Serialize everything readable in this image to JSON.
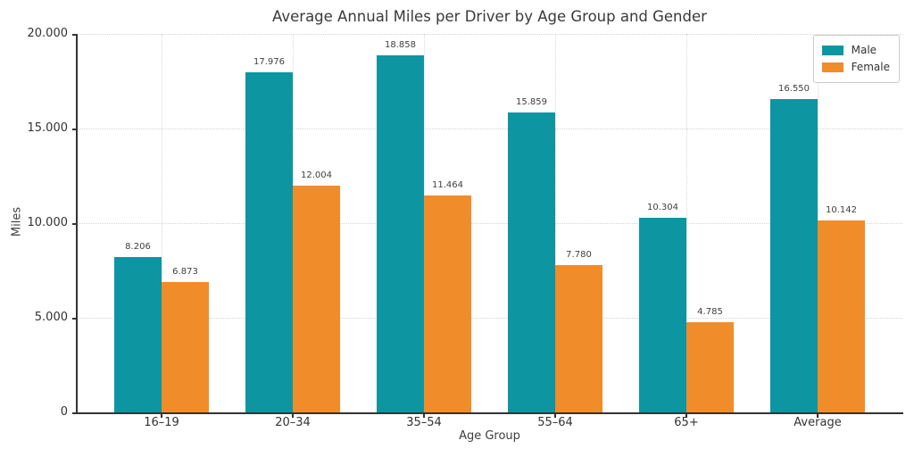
{
  "chart_data": {
    "type": "bar",
    "title": "Average Annual Miles per Driver by Age Group and Gender",
    "xlabel": "Age Group",
    "ylabel": "Miles",
    "categories": [
      "16–19",
      "20–34",
      "35–54",
      "55–64",
      "65+",
      "Average"
    ],
    "series": [
      {
        "name": "Male",
        "color": "#0d95a2",
        "values": [
          8206,
          17976,
          18858,
          15859,
          10304,
          16550
        ]
      },
      {
        "name": "Female",
        "color": "#f18c2b",
        "values": [
          6873,
          12004,
          11464,
          7780,
          4785,
          10142
        ]
      }
    ],
    "ylim": [
      0,
      20000
    ],
    "yticks": [
      0,
      5000,
      10000,
      15000,
      20000
    ],
    "grid": true,
    "grid_style": "dotted",
    "legend_position": "upper right",
    "number_format": "thousands-dot",
    "bar_value_labels": true,
    "colors": {
      "male": "#0d95a2",
      "female": "#f18c2b",
      "spine": "#333333",
      "grid": "#d6d6d6",
      "text": "#3a3a3a"
    }
  }
}
